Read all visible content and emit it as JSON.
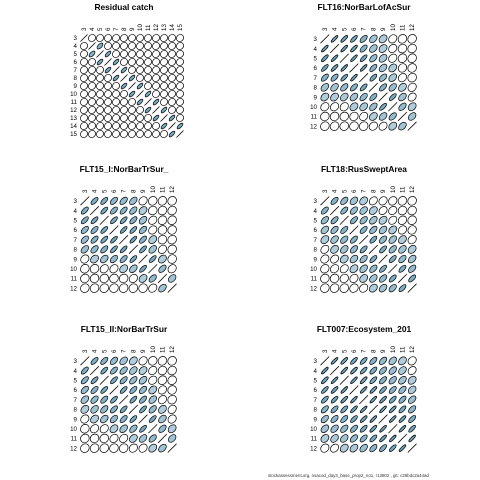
{
  "figure": {
    "footer": "stockassessment.org, nsacod_day3_base_prop2_no1, r13802 , git: c28bdc2a44ad"
  },
  "colors": {
    "fill": "#6fa4bf",
    "stroke": "#000000",
    "background": "#ffffff"
  },
  "chart_data": [
    {
      "type": "heatmap",
      "title": "Residual catch",
      "ticks": [
        "3",
        "4",
        "5",
        "6",
        "7",
        "8",
        "9",
        "10",
        "11",
        "12",
        "13",
        "14",
        "15"
      ],
      "grid": false,
      "matrix": [
        [
          null,
          0.1,
          0.1,
          0.1,
          0.1,
          0.1,
          0.1,
          0.1,
          0.1,
          0.1,
          0.1,
          0.1,
          0.1
        ],
        [
          0.1,
          null,
          0.6,
          0.1,
          0.1,
          0.1,
          0.1,
          0.1,
          0.1,
          0.1,
          0.1,
          0.1,
          0.1
        ],
        [
          0.1,
          0.6,
          null,
          0.7,
          0.1,
          0.1,
          0.1,
          0.1,
          0.1,
          0.1,
          0.1,
          0.1,
          0.1
        ],
        [
          0.1,
          0.1,
          0.7,
          null,
          0.7,
          0.1,
          0.1,
          0.1,
          0.1,
          0.1,
          0.1,
          0.1,
          0.1
        ],
        [
          0.1,
          0.1,
          0.1,
          0.7,
          null,
          0.7,
          0.1,
          0.1,
          0.1,
          0.1,
          0.1,
          0.1,
          0.1
        ],
        [
          0.1,
          0.1,
          0.1,
          0.1,
          0.7,
          null,
          0.7,
          0.1,
          0.1,
          0.1,
          0.1,
          0.1,
          0.1
        ],
        [
          0.1,
          0.1,
          0.1,
          0.1,
          0.1,
          0.7,
          null,
          0.7,
          0.1,
          0.1,
          0.1,
          0.1,
          0.1
        ],
        [
          0.1,
          0.1,
          0.1,
          0.1,
          0.1,
          0.1,
          0.7,
          null,
          0.7,
          0.1,
          0.1,
          0.1,
          0.1
        ],
        [
          0.1,
          0.1,
          0.1,
          0.1,
          0.1,
          0.1,
          0.1,
          0.7,
          null,
          0.7,
          0.1,
          0.1,
          0.1
        ],
        [
          0.1,
          0.1,
          0.1,
          0.1,
          0.1,
          0.1,
          0.1,
          0.1,
          0.7,
          null,
          0.7,
          0.1,
          0.1
        ],
        [
          0.1,
          0.1,
          0.1,
          0.1,
          0.1,
          0.1,
          0.1,
          0.1,
          0.1,
          0.7,
          null,
          0.7,
          0.1
        ],
        [
          0.1,
          0.1,
          0.1,
          0.1,
          0.1,
          0.1,
          0.1,
          0.1,
          0.1,
          0.1,
          0.7,
          null,
          0.7
        ],
        [
          0.1,
          0.1,
          0.1,
          0.1,
          0.1,
          0.1,
          0.1,
          0.1,
          0.1,
          0.1,
          0.1,
          0.7,
          null
        ]
      ]
    },
    {
      "type": "heatmap",
      "title": "FLT16:NorBarLofAcSur",
      "ticks": [
        "3",
        "4",
        "5",
        "6",
        "7",
        "8",
        "9",
        "10",
        "11",
        "12"
      ],
      "grid": false,
      "matrix": [
        [
          null,
          0.85,
          0.8,
          0.75,
          0.6,
          0.4,
          0.3,
          0.2,
          0.1,
          0.1
        ],
        [
          0.85,
          null,
          0.85,
          0.8,
          0.6,
          0.4,
          0.3,
          0.2,
          0.1,
          0.1
        ],
        [
          0.8,
          0.85,
          null,
          0.85,
          0.75,
          0.5,
          0.35,
          0.2,
          0.1,
          0.1
        ],
        [
          0.75,
          0.8,
          0.85,
          null,
          0.85,
          0.6,
          0.4,
          0.3,
          0.15,
          0.1
        ],
        [
          0.6,
          0.6,
          0.75,
          0.85,
          null,
          0.7,
          0.5,
          0.35,
          0.2,
          0.1
        ],
        [
          0.4,
          0.4,
          0.5,
          0.6,
          0.7,
          null,
          0.6,
          0.45,
          0.3,
          0.2
        ],
        [
          0.3,
          0.3,
          0.35,
          0.4,
          0.5,
          0.6,
          null,
          0.7,
          0.4,
          0.25
        ],
        [
          0.2,
          0.2,
          0.2,
          0.3,
          0.35,
          0.45,
          0.7,
          null,
          0.5,
          0.3
        ],
        [
          0.1,
          0.1,
          0.1,
          0.15,
          0.2,
          0.3,
          0.4,
          0.5,
          null,
          0.4
        ],
        [
          0.1,
          0.1,
          0.1,
          0.1,
          0.1,
          0.2,
          0.25,
          0.3,
          0.4,
          null
        ]
      ]
    },
    {
      "type": "heatmap",
      "title": "FLT15_I:NorBarTrSur_",
      "ticks": [
        "3",
        "4",
        "5",
        "6",
        "7",
        "8",
        "9",
        "10",
        "11",
        "12"
      ],
      "grid": false,
      "matrix": [
        [
          null,
          0.65,
          0.65,
          0.55,
          0.5,
          0.45,
          0.2,
          0.1,
          0.1,
          0.1
        ],
        [
          0.65,
          null,
          0.7,
          0.6,
          0.6,
          0.5,
          0.3,
          0.1,
          0.1,
          0.1
        ],
        [
          0.65,
          0.7,
          null,
          0.7,
          0.7,
          0.6,
          0.4,
          0.2,
          0.1,
          0.1
        ],
        [
          0.55,
          0.6,
          0.7,
          null,
          0.75,
          0.7,
          0.5,
          0.2,
          0.1,
          0.1
        ],
        [
          0.5,
          0.6,
          0.7,
          0.75,
          null,
          0.75,
          0.6,
          0.3,
          0.1,
          0.1
        ],
        [
          0.45,
          0.5,
          0.6,
          0.7,
          0.75,
          null,
          0.7,
          0.4,
          0.2,
          0.1
        ],
        [
          0.2,
          0.3,
          0.4,
          0.5,
          0.6,
          0.7,
          null,
          0.7,
          0.3,
          0.1
        ],
        [
          0.1,
          0.1,
          0.2,
          0.2,
          0.3,
          0.4,
          0.7,
          null,
          0.5,
          0.2
        ],
        [
          0.1,
          0.1,
          0.1,
          0.1,
          0.1,
          0.2,
          0.3,
          0.5,
          null,
          0.4
        ],
        [
          0.1,
          0.1,
          0.1,
          0.1,
          0.1,
          0.1,
          0.1,
          0.2,
          0.4,
          null
        ]
      ]
    },
    {
      "type": "heatmap",
      "title": "FLT18:RusSweptArea",
      "ticks": [
        "3",
        "4",
        "5",
        "6",
        "7",
        "8",
        "9",
        "10",
        "11",
        "12"
      ],
      "grid": false,
      "matrix": [
        [
          null,
          0.6,
          0.5,
          0.4,
          0.3,
          0.25,
          0.2,
          0.15,
          0.1,
          0.1
        ],
        [
          0.6,
          null,
          0.6,
          0.5,
          0.4,
          0.3,
          0.25,
          0.2,
          0.1,
          0.1
        ],
        [
          0.5,
          0.6,
          null,
          0.6,
          0.5,
          0.4,
          0.3,
          0.25,
          0.15,
          0.1
        ],
        [
          0.4,
          0.5,
          0.6,
          null,
          0.6,
          0.5,
          0.4,
          0.3,
          0.2,
          0.15
        ],
        [
          0.3,
          0.4,
          0.5,
          0.6,
          null,
          0.65,
          0.5,
          0.4,
          0.3,
          0.2
        ],
        [
          0.25,
          0.3,
          0.4,
          0.5,
          0.65,
          null,
          0.65,
          0.5,
          0.4,
          0.3
        ],
        [
          0.2,
          0.25,
          0.3,
          0.4,
          0.5,
          0.65,
          null,
          0.65,
          0.5,
          0.4
        ],
        [
          0.15,
          0.2,
          0.25,
          0.3,
          0.4,
          0.5,
          0.65,
          null,
          0.65,
          0.5
        ],
        [
          0.1,
          0.1,
          0.15,
          0.2,
          0.3,
          0.4,
          0.5,
          0.65,
          null,
          0.65
        ],
        [
          0.1,
          0.1,
          0.1,
          0.15,
          0.2,
          0.3,
          0.4,
          0.5,
          0.65,
          null
        ]
      ]
    },
    {
      "type": "heatmap",
      "title": "FLT15_II:NorBarTrSur",
      "ticks": [
        "3",
        "4",
        "5",
        "6",
        "7",
        "8",
        "9",
        "10",
        "11",
        "12"
      ],
      "grid": false,
      "matrix": [
        [
          null,
          0.65,
          0.6,
          0.5,
          0.4,
          0.3,
          0.2,
          0.1,
          0.1,
          0.1
        ],
        [
          0.65,
          null,
          0.7,
          0.6,
          0.5,
          0.4,
          0.3,
          0.2,
          0.1,
          0.1
        ],
        [
          0.6,
          0.7,
          null,
          0.7,
          0.6,
          0.5,
          0.4,
          0.2,
          0.1,
          0.1
        ],
        [
          0.5,
          0.6,
          0.7,
          null,
          0.7,
          0.6,
          0.5,
          0.3,
          0.2,
          0.1
        ],
        [
          0.4,
          0.5,
          0.6,
          0.7,
          null,
          0.7,
          0.6,
          0.4,
          0.2,
          0.1
        ],
        [
          0.3,
          0.4,
          0.5,
          0.6,
          0.7,
          null,
          0.7,
          0.5,
          0.3,
          0.2
        ],
        [
          0.2,
          0.3,
          0.4,
          0.5,
          0.6,
          0.7,
          null,
          0.7,
          0.4,
          0.2
        ],
        [
          0.1,
          0.2,
          0.2,
          0.3,
          0.4,
          0.5,
          0.7,
          null,
          0.5,
          0.3
        ],
        [
          0.1,
          0.1,
          0.1,
          0.2,
          0.2,
          0.3,
          0.4,
          0.5,
          null,
          0.4
        ],
        [
          0.1,
          0.1,
          0.1,
          0.1,
          0.1,
          0.2,
          0.2,
          0.3,
          0.4,
          null
        ]
      ]
    },
    {
      "type": "heatmap",
      "title": "FLT007:Ecosystem_201",
      "ticks": [
        "3",
        "4",
        "5",
        "6",
        "7",
        "8",
        "9",
        "10",
        "11",
        "12"
      ],
      "grid": false,
      "matrix": [
        [
          null,
          0.85,
          0.8,
          0.75,
          0.7,
          0.6,
          0.5,
          0.4,
          0.3,
          0.2
        ],
        [
          0.85,
          null,
          0.85,
          0.8,
          0.75,
          0.65,
          0.55,
          0.45,
          0.35,
          0.25
        ],
        [
          0.8,
          0.85,
          null,
          0.85,
          0.8,
          0.7,
          0.6,
          0.5,
          0.4,
          0.3
        ],
        [
          0.75,
          0.8,
          0.85,
          null,
          0.85,
          0.8,
          0.7,
          0.6,
          0.5,
          0.35
        ],
        [
          0.7,
          0.75,
          0.8,
          0.85,
          null,
          0.85,
          0.8,
          0.7,
          0.6,
          0.45
        ],
        [
          0.6,
          0.65,
          0.7,
          0.8,
          0.85,
          null,
          0.85,
          0.8,
          0.7,
          0.55
        ],
        [
          0.5,
          0.55,
          0.6,
          0.7,
          0.8,
          0.85,
          null,
          0.85,
          0.8,
          0.65
        ],
        [
          0.4,
          0.45,
          0.5,
          0.6,
          0.7,
          0.8,
          0.85,
          null,
          0.85,
          0.75
        ],
        [
          0.3,
          0.35,
          0.4,
          0.5,
          0.6,
          0.7,
          0.8,
          0.85,
          null,
          0.85
        ],
        [
          0.2,
          0.25,
          0.3,
          0.35,
          0.45,
          0.55,
          0.65,
          0.75,
          0.85,
          null
        ]
      ]
    }
  ]
}
